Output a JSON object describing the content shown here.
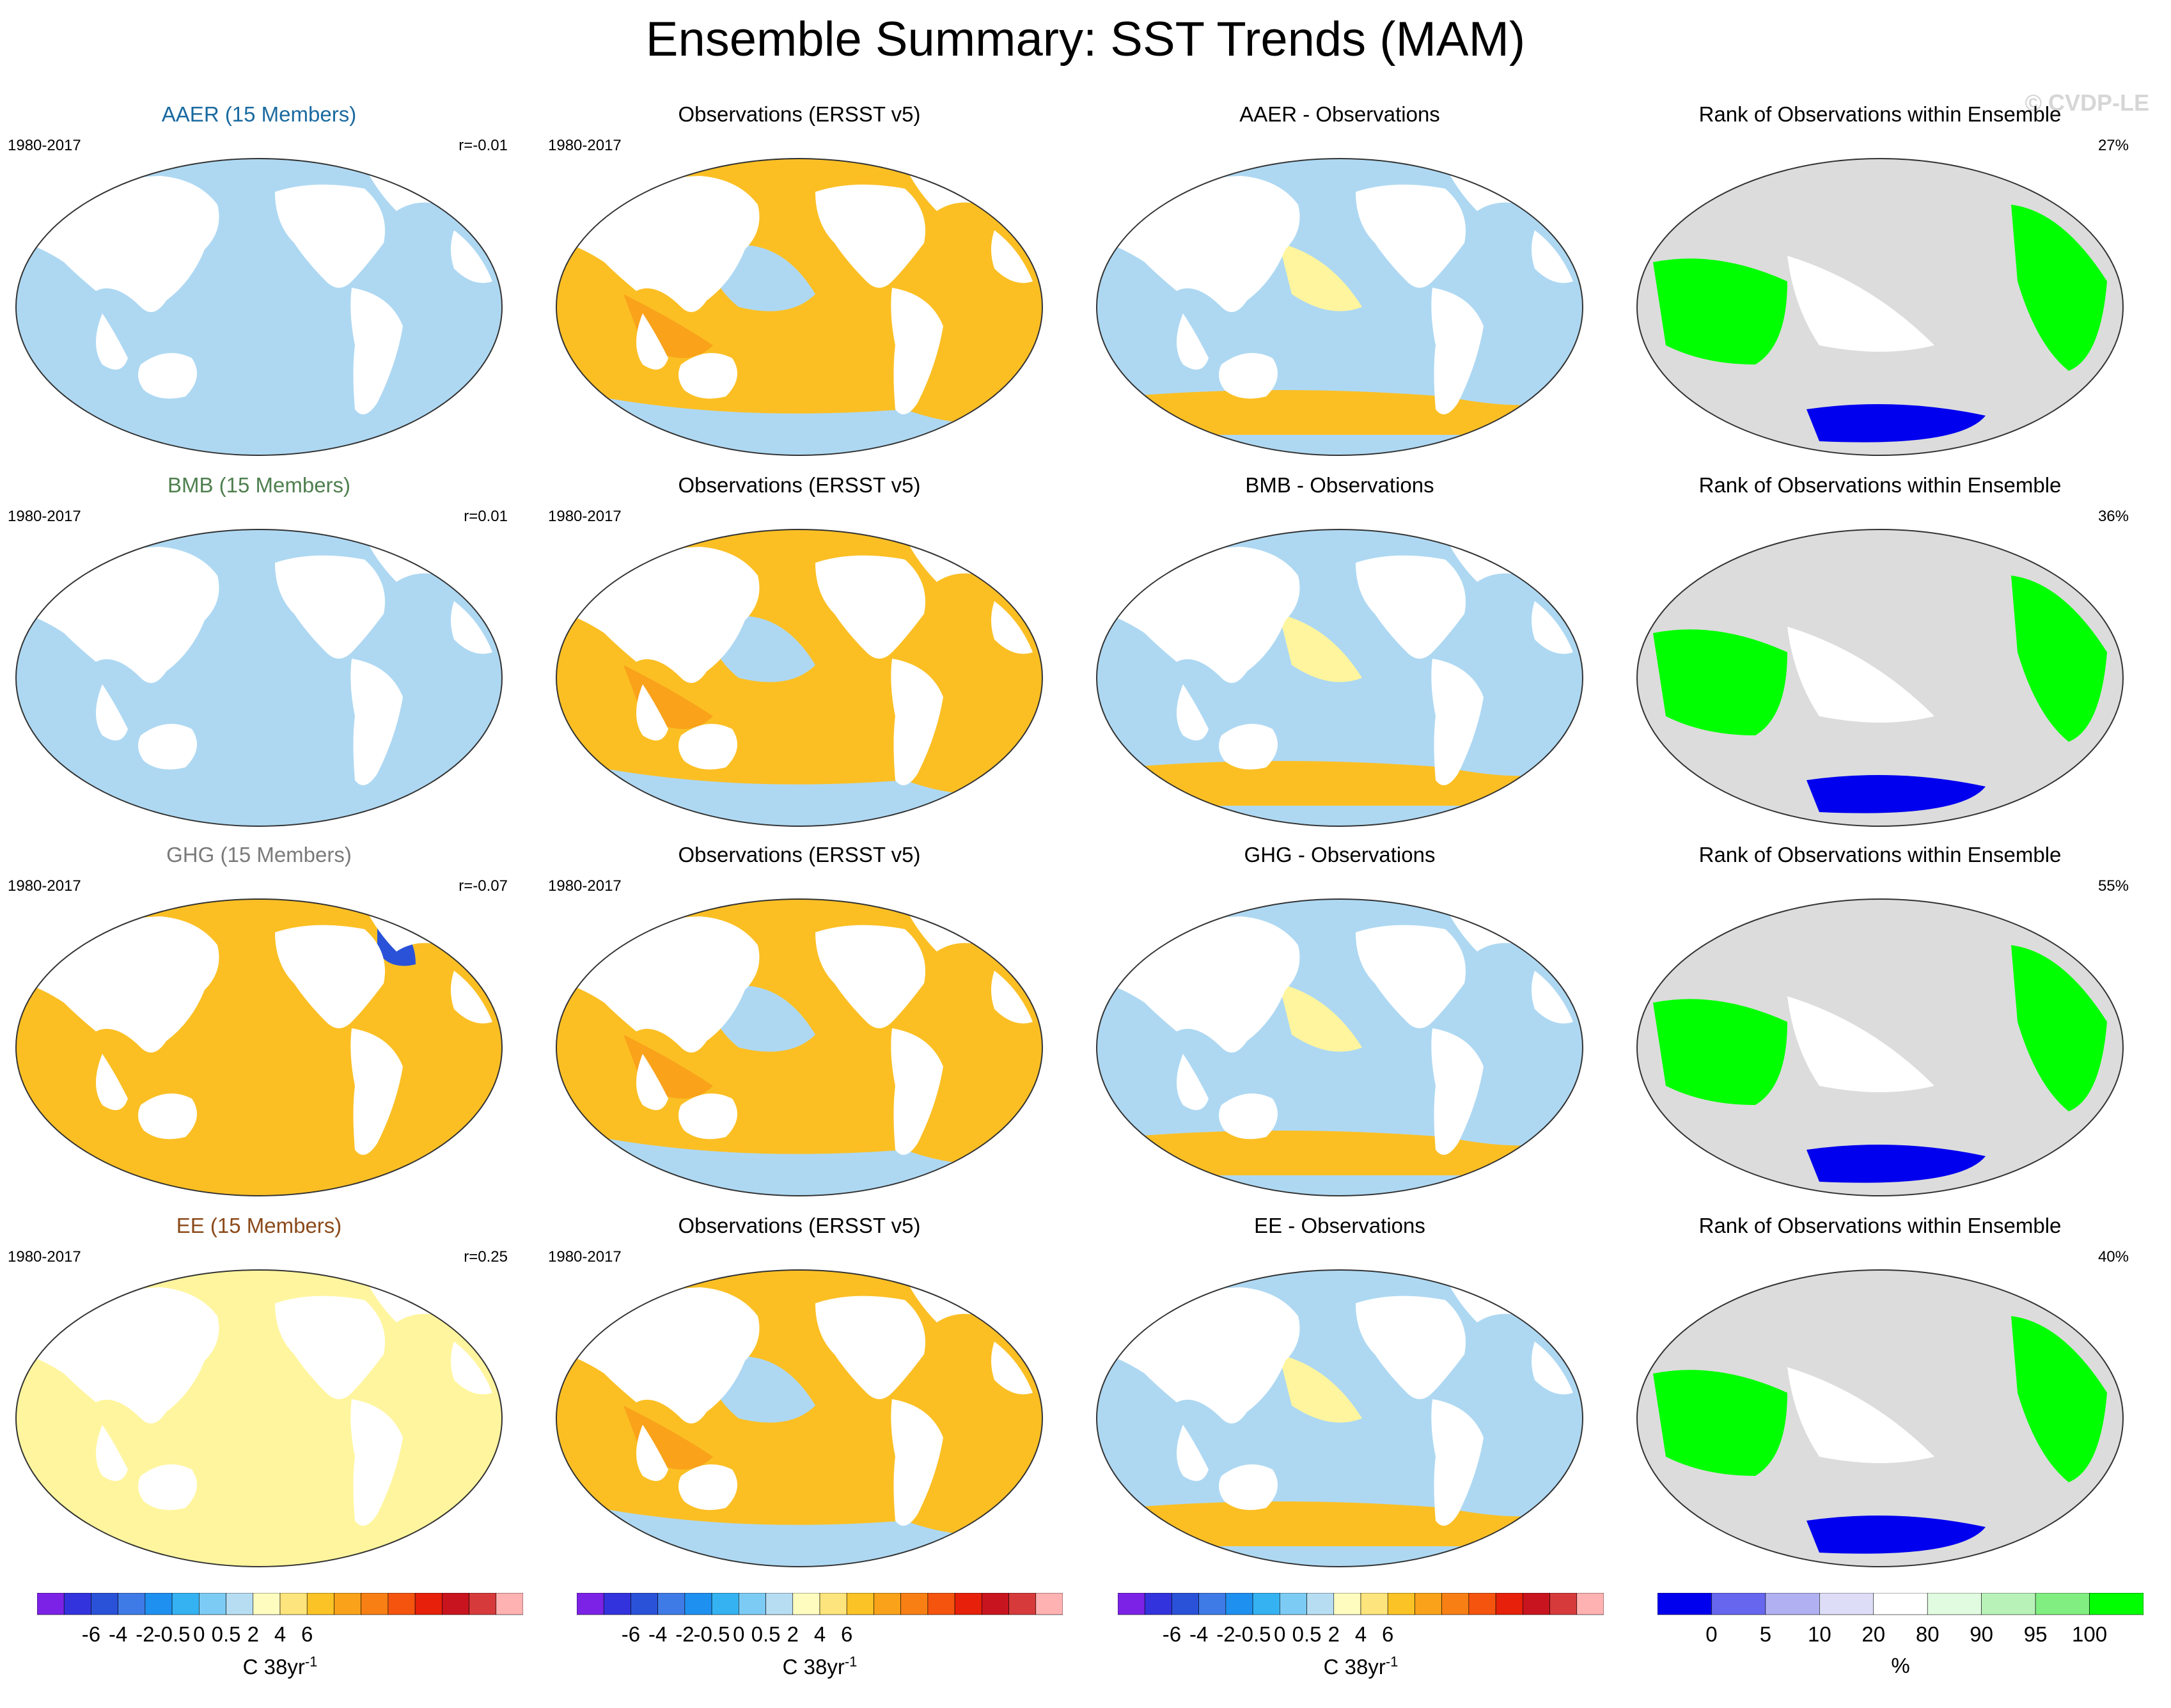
{
  "title": "Ensemble Summary: SST Trends (MAM)",
  "watermark": "© CVDP-LE",
  "colors": {
    "ocean_blue": "#aed8f2",
    "ocean_yellow": "#fff59e",
    "ocean_orange": "#fbbf24",
    "rank_green": "#00ff00",
    "rank_blue": "#0000ee",
    "land_gray": "#dcdcdc"
  },
  "rows": [
    {
      "ensemble": {
        "title": "AAER (15 Members)",
        "years": "1980-2017",
        "stat": "r=-0.01",
        "title_color": "#1a6aa0"
      },
      "observations": {
        "title": "Observations (ERSST v5)",
        "years": "1980-2017"
      },
      "difference": {
        "title": "AAER - Observations"
      },
      "rank": {
        "title": "Rank of Observations within Ensemble",
        "stat": "27%"
      }
    },
    {
      "ensemble": {
        "title": "BMB (15 Members)",
        "years": "1980-2017",
        "stat": "r=0.01",
        "title_color": "#4f7f4f"
      },
      "observations": {
        "title": "Observations (ERSST v5)",
        "years": "1980-2017"
      },
      "difference": {
        "title": "BMB - Observations"
      },
      "rank": {
        "title": "Rank of Observations within Ensemble",
        "stat": "36%"
      }
    },
    {
      "ensemble": {
        "title": "GHG (15 Members)",
        "years": "1980-2017",
        "stat": "r=-0.07",
        "title_color": "#7a7a7a"
      },
      "observations": {
        "title": "Observations (ERSST v5)",
        "years": "1980-2017"
      },
      "difference": {
        "title": "GHG - Observations"
      },
      "rank": {
        "title": "Rank of Observations within Ensemble",
        "stat": "55%"
      }
    },
    {
      "ensemble": {
        "title": "EE (15 Members)",
        "years": "1980-2017",
        "stat": "r=0.25",
        "title_color": "#8b4a1a"
      },
      "observations": {
        "title": "Observations (ERSST v5)",
        "years": "1980-2017"
      },
      "difference": {
        "title": "EE - Observations"
      },
      "rank": {
        "title": "Rank of Observations within Ensemble",
        "stat": "40%"
      }
    }
  ],
  "trend_colorbar": {
    "ticks": [
      "-6",
      "-4",
      "-2",
      "-0.5",
      "0",
      "0.5",
      "2",
      "4",
      "6"
    ],
    "unit": "C 38yr",
    "unit_sup": "-1",
    "swatches": [
      "#7b22e6",
      "#3333dd",
      "#2a52d8",
      "#3f7be6",
      "#1e90f0",
      "#35b2f2",
      "#7ccbf4",
      "#b7ddf2",
      "#fffcc0",
      "#fde47c",
      "#fbc325",
      "#f9a21a",
      "#f77f14",
      "#f5540f",
      "#e6200a",
      "#c8141e",
      "#d63a3a",
      "#ffb2b2"
    ]
  },
  "rank_colorbar": {
    "ticks": [
      "0",
      "5",
      "10",
      "20",
      "80",
      "90",
      "95",
      "100"
    ],
    "unit": "%",
    "swatches": [
      "#0000ee",
      "#6666ee",
      "#b0b0f2",
      "#ddddf7",
      "#ffffff",
      "#e0fbe0",
      "#b8f2b8",
      "#80ee80",
      "#00ff00"
    ]
  }
}
